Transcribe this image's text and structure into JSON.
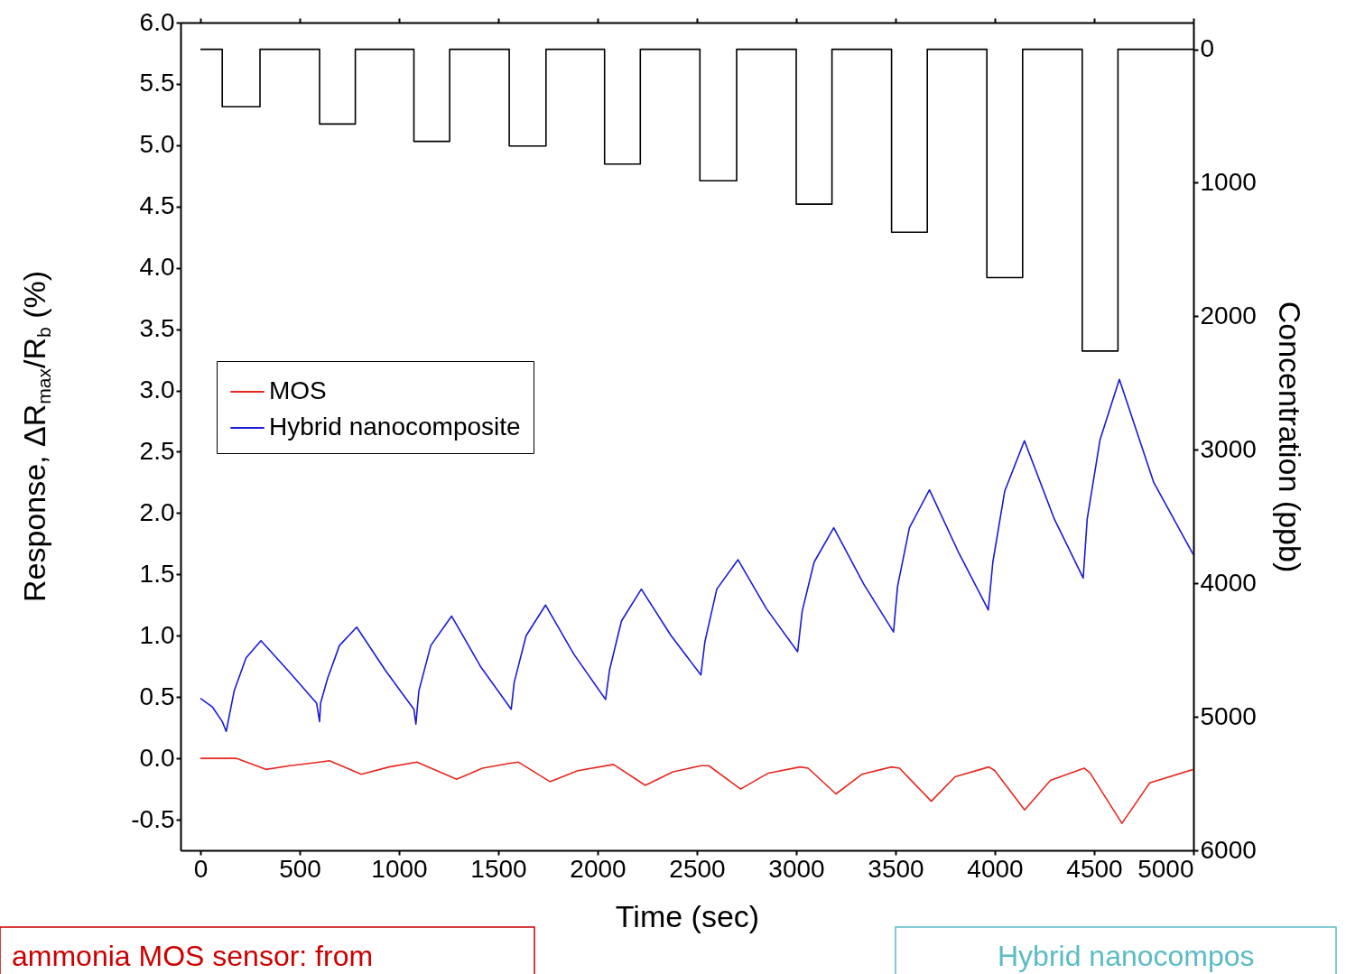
{
  "chart_data": {
    "type": "line",
    "xlabel": "Time (sec)",
    "ylabel": "Response, ΔR$_{max}$/R$_{b}$ (%)",
    "y2label": "Concentration (ppb)",
    "xlim": [
      -100,
      5000
    ],
    "xticks": [
      0,
      500,
      1000,
      1500,
      2000,
      2500,
      3000,
      3500,
      4000,
      4500,
      5000
    ],
    "ylim": [
      -0.75,
      6.0
    ],
    "yticks": [
      {
        "value": -0.5,
        "label": "-0.5"
      },
      {
        "value": 0,
        "label": "0.0"
      },
      {
        "value": 0.5,
        "label": "0.5"
      },
      {
        "value": 1,
        "label": "1.0"
      },
      {
        "value": 1.5,
        "label": "1.5"
      },
      {
        "value": 2,
        "label": "2.0"
      },
      {
        "value": 2.5,
        "label": "2.5"
      },
      {
        "value": 3,
        "label": "3.0"
      },
      {
        "value": 3.5,
        "label": "3.5"
      },
      {
        "value": 4,
        "label": "4.0"
      },
      {
        "value": 4.5,
        "label": "4.5"
      },
      {
        "value": 5,
        "label": "5.0"
      },
      {
        "value": 5.5,
        "label": "5.5"
      },
      {
        "value": 6,
        "label": "6.0"
      }
    ],
    "y2lim": [
      6000,
      -200
    ],
    "y2ticks": [
      0,
      1000,
      2000,
      3000,
      4000,
      5000,
      6000
    ],
    "grid": false,
    "legend": "top left",
    "series": [
      {
        "name": "MOS",
        "color": "#e8271f",
        "type": "line",
        "x": [
          0,
          180,
          330,
          450,
          600,
          650,
          810,
          950,
          1090,
          1290,
          1420,
          1560,
          1600,
          1760,
          1900,
          2080,
          2240,
          2380,
          2520,
          2560,
          2720,
          2860,
          3020,
          3060,
          3200,
          3330,
          3480,
          3520,
          3680,
          3800,
          3970,
          4000,
          4150,
          4280,
          4450,
          4480,
          4640,
          4780,
          5000
        ],
        "values": [
          0.0,
          0.0,
          -0.09,
          -0.06,
          -0.03,
          -0.02,
          -0.13,
          -0.07,
          -0.03,
          -0.17,
          -0.08,
          -0.04,
          -0.03,
          -0.19,
          -0.1,
          -0.05,
          -0.22,
          -0.11,
          -0.06,
          -0.06,
          -0.25,
          -0.12,
          -0.07,
          -0.08,
          -0.29,
          -0.13,
          -0.07,
          -0.08,
          -0.35,
          -0.15,
          -0.07,
          -0.1,
          -0.42,
          -0.18,
          -0.08,
          -0.12,
          -0.53,
          -0.2,
          -0.09
        ]
      },
      {
        "name": "Hybrid nanocomposite",
        "color": "#1a1adb",
        "type": "line",
        "x": [
          0,
          60,
          110,
          130,
          170,
          230,
          305,
          450,
          585,
          600,
          605,
          640,
          700,
          787,
          930,
          1075,
          1085,
          1100,
          1160,
          1265,
          1410,
          1565,
          1580,
          1640,
          1738,
          1880,
          2040,
          2060,
          2120,
          2220,
          2370,
          2520,
          2540,
          2600,
          2707,
          2850,
          3007,
          3030,
          3090,
          3189,
          3340,
          3490,
          3510,
          3570,
          3671,
          3820,
          3967,
          3990,
          4050,
          4149,
          4300,
          4445,
          4465,
          4530,
          4627,
          4800,
          5000
        ],
        "values": [
          0.49,
          0.42,
          0.3,
          0.22,
          0.55,
          0.82,
          0.96,
          0.7,
          0.45,
          0.3,
          0.45,
          0.65,
          0.92,
          1.07,
          0.72,
          0.4,
          0.28,
          0.55,
          0.92,
          1.16,
          0.75,
          0.4,
          0.62,
          1.0,
          1.25,
          0.85,
          0.48,
          0.72,
          1.12,
          1.38,
          1.0,
          0.68,
          0.95,
          1.38,
          1.62,
          1.22,
          0.87,
          1.2,
          1.6,
          1.88,
          1.42,
          1.03,
          1.4,
          1.88,
          2.19,
          1.67,
          1.21,
          1.6,
          2.18,
          2.59,
          1.95,
          1.47,
          1.95,
          2.6,
          3.09,
          2.25,
          1.66
        ]
      },
      {
        "color": "#000000",
        "type": "step",
        "axis": "y2",
        "x": [
          0,
          110,
          300,
          600,
          780,
          1075,
          1255,
          1555,
          1740,
          2035,
          2215,
          2515,
          2700,
          3000,
          3180,
          3480,
          3660,
          3960,
          4140,
          4440,
          4620,
          5000
        ],
        "values": [
          0,
          430,
          0,
          560,
          0,
          690,
          0,
          725,
          0,
          860,
          0,
          985,
          0,
          1160,
          0,
          1370,
          0,
          1710,
          0,
          2260,
          0,
          0
        ]
      }
    ],
    "annotations": [
      "ammonia MOS sensor: from",
      "Hybrid nanocompos"
    ]
  }
}
